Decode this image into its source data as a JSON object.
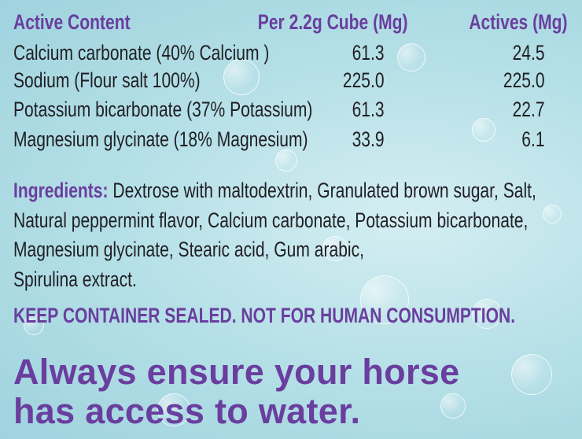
{
  "colors": {
    "accent": "#6a3e9e",
    "text": "#1f1f24",
    "background": "#b8e1e8"
  },
  "table": {
    "headers": [
      "Active Content",
      "Per 2.2g Cube (Mg)",
      "Actives (Mg)"
    ],
    "rows": [
      [
        "Calcium carbonate (40% Calcium )",
        "61.3",
        "24.5"
      ],
      [
        "Sodium (Flour salt 100%)",
        "225.0",
        "225.0"
      ],
      [
        "Potassium bicarbonate (37% Potassium)",
        "61.3",
        "22.7"
      ],
      [
        "Magnesium glycinate (18% Magnesium)",
        "33.9",
        "6.1"
      ]
    ]
  },
  "ingredients": {
    "label": "Ingredients:",
    "lines": [
      " Dextrose with maltodextrin, Granulated brown sugar, Salt,",
      "Natural peppermint flavor, Calcium carbonate, Potassium bicarbonate,",
      "Magnesium glycinate, Stearic acid, Gum arabic,",
      "Spirulina extract."
    ]
  },
  "warning": "KEEP CONTAINER SEALED. NOT FOR HUMAN CONSUMPTION.",
  "tagline": [
    "Always ensure your horse",
    "has access to water."
  ]
}
